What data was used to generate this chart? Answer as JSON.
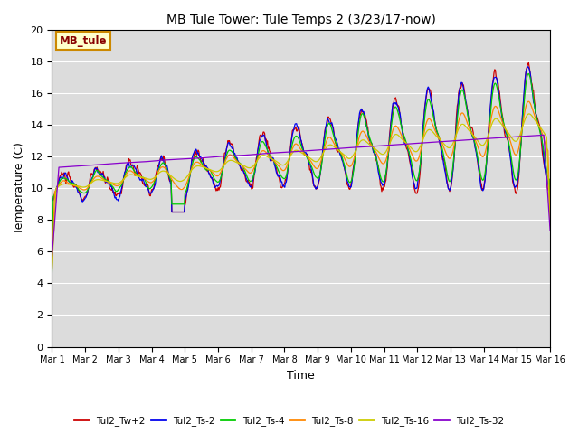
{
  "title": "MB Tule Tower: Tule Temps 2 (3/23/17-now)",
  "xlabel": "Time",
  "ylabel": "Temperature (C)",
  "bg_color": "#dcdcdc",
  "fig_bg_color": "#ffffff",
  "ylim": [
    0,
    20
  ],
  "yticks": [
    0,
    2,
    4,
    6,
    8,
    10,
    12,
    14,
    16,
    18,
    20
  ],
  "x_ticks_labels": [
    "Mar 1",
    "Mar 2",
    "Mar 3",
    "Mar 4",
    "Mar 5",
    "Mar 6",
    "Mar 7",
    "Mar 8",
    "Mar 9",
    "Mar 10",
    "Mar 11",
    "Mar 12",
    "Mar 13",
    "Mar 14",
    "Mar 15",
    "Mar 16"
  ],
  "series_colors": {
    "Tul2_Tw+2": "#cc0000",
    "Tul2_Ts-2": "#0000ee",
    "Tul2_Ts-4": "#00cc00",
    "Tul2_Ts-8": "#ff8800",
    "Tul2_Ts-16": "#cccc00",
    "Tul2_Ts-32": "#8800cc"
  },
  "annotation_label": "MB_tule",
  "annotation_bg": "#ffffcc",
  "annotation_border": "#cc8800"
}
